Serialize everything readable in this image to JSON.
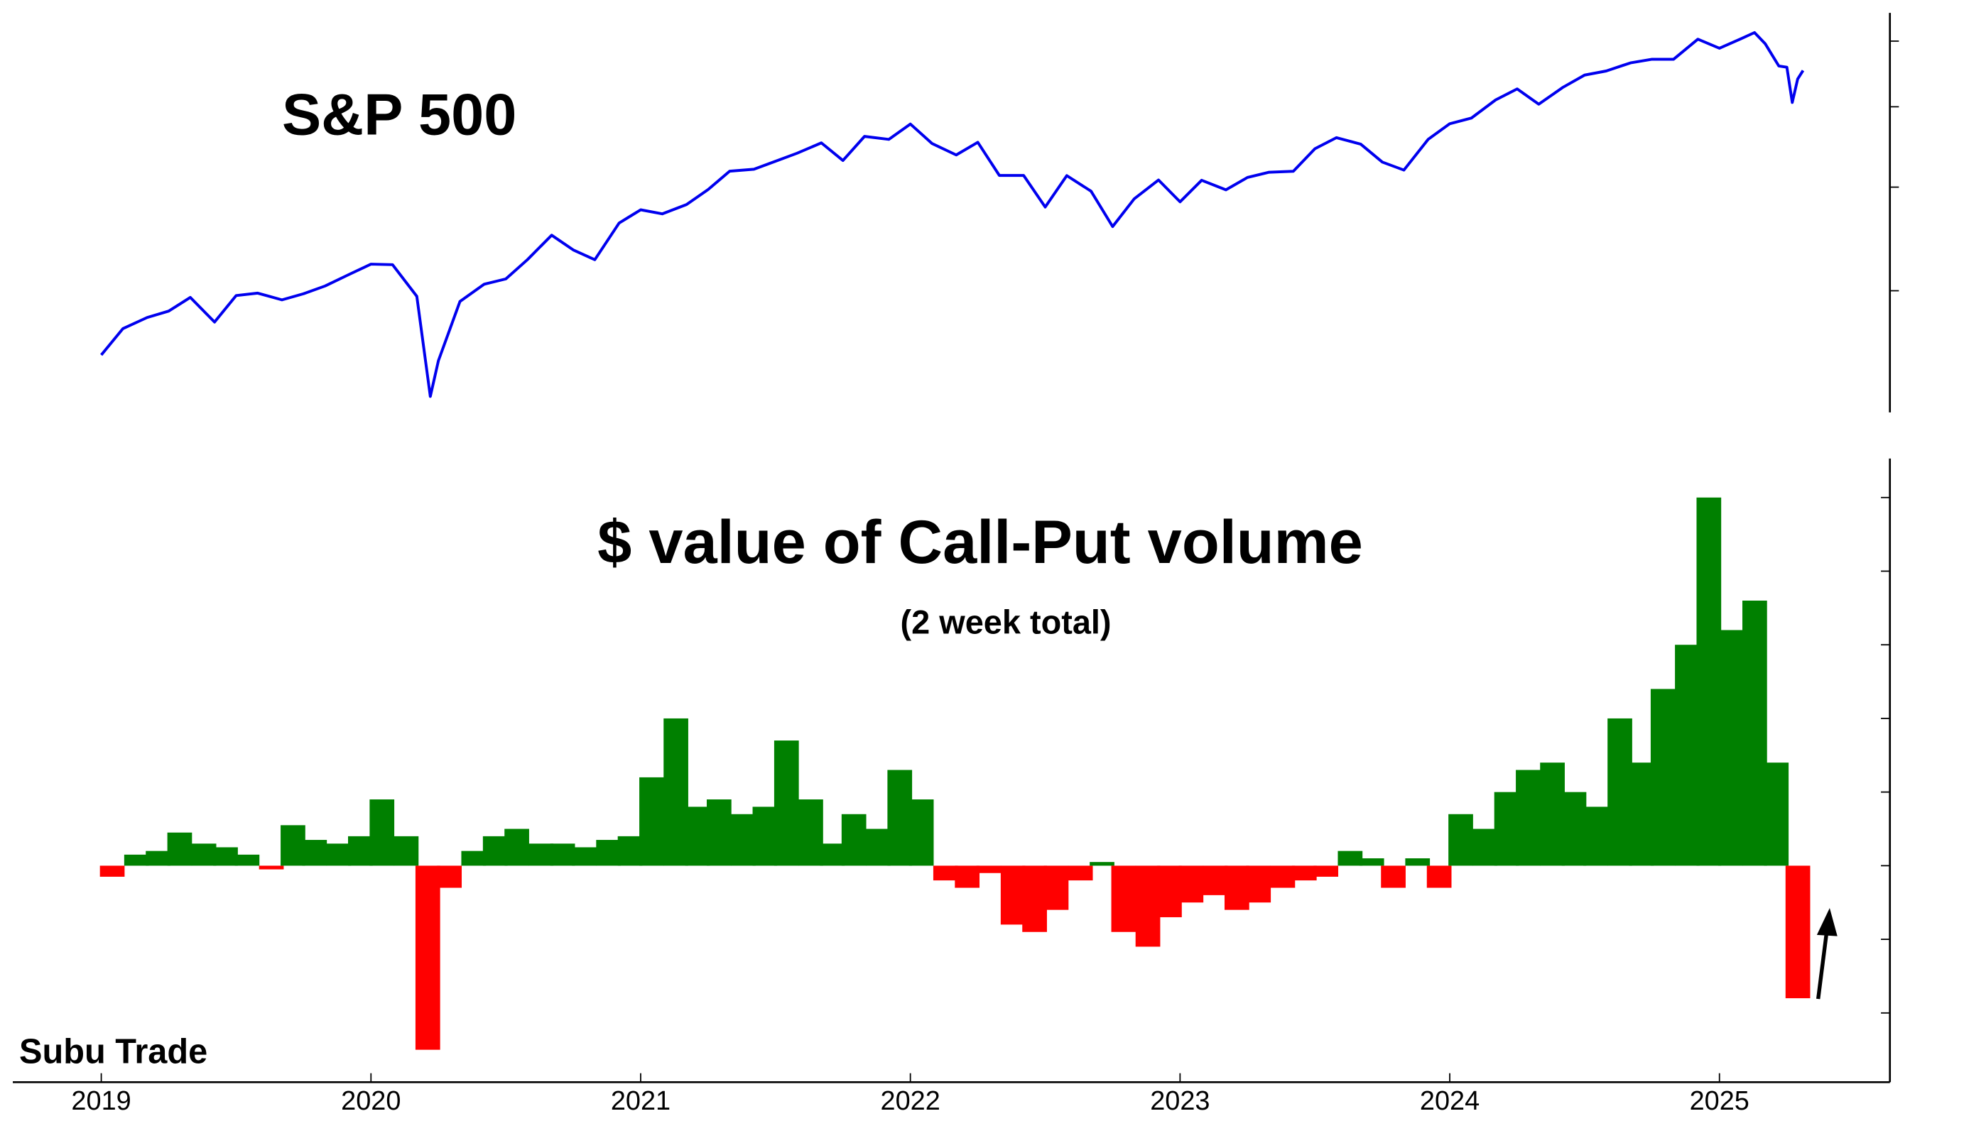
{
  "chart_data": [
    {
      "type": "line",
      "title": "S&P 500",
      "color": "#0000ee",
      "log_scale": true,
      "ylim": [
        2140,
        6490
      ],
      "yticks": [
        3000,
        4000,
        5000,
        6000
      ],
      "xlim": [
        2018.672,
        2025.632
      ],
      "x": [
        2019.0,
        2019.08,
        2019.17,
        2019.25,
        2019.33,
        2019.42,
        2019.5,
        2019.58,
        2019.67,
        2019.75,
        2019.83,
        2019.92,
        2020.0,
        2020.08,
        2020.17,
        2020.22,
        2020.25,
        2020.33,
        2020.42,
        2020.5,
        2020.58,
        2020.67,
        2020.75,
        2020.83,
        2020.92,
        2021.0,
        2021.08,
        2021.17,
        2021.25,
        2021.33,
        2021.42,
        2021.5,
        2021.58,
        2021.67,
        2021.75,
        2021.83,
        2021.92,
        2022.0,
        2022.08,
        2022.17,
        2022.25,
        2022.33,
        2022.42,
        2022.5,
        2022.58,
        2022.67,
        2022.75,
        2022.83,
        2022.92,
        2023.0,
        2023.08,
        2023.17,
        2023.25,
        2023.33,
        2023.42,
        2023.5,
        2023.58,
        2023.67,
        2023.75,
        2023.83,
        2023.92,
        2024.0,
        2024.08,
        2024.17,
        2024.25,
        2024.33,
        2024.42,
        2024.5,
        2024.58,
        2024.67,
        2024.75,
        2024.83,
        2024.92,
        2025.0,
        2025.08,
        2025.13,
        2025.17,
        2025.22,
        2025.25,
        2025.27,
        2025.29,
        2025.31
      ],
      "values": [
        2510,
        2700,
        2785,
        2835,
        2945,
        2750,
        2960,
        2980,
        2925,
        2975,
        3040,
        3140,
        3230,
        3225,
        2954,
        2237,
        2470,
        2912,
        3055,
        3100,
        3270,
        3500,
        3360,
        3270,
        3620,
        3756,
        3714,
        3811,
        3973,
        4181,
        4204,
        4298,
        4395,
        4523,
        4307,
        4605,
        4567,
        4766,
        4516,
        4374,
        4530,
        4132,
        4132,
        3785,
        4130,
        3955,
        3585,
        3872,
        4080,
        3840,
        4077,
        3970,
        4109,
        4169,
        4180,
        4450,
        4589,
        4507,
        4288,
        4194,
        4568,
        4770,
        4845,
        5096,
        5254,
        5036,
        5278,
        5460,
        5522,
        5648,
        5705,
        5705,
        6032,
        5882,
        6040,
        6144,
        5954,
        5600,
        5580,
        5060,
        5400,
        5530
      ]
    },
    {
      "type": "bar",
      "title": "$ value of Call-Put volume",
      "subtitle": "(2 week total)",
      "annotation": "Subu Trade",
      "positive_color": "#008000",
      "negative_color": "#ff0000",
      "ylim": [
        -29.4,
        55.3
      ],
      "yticks": [
        -20,
        -10,
        0,
        10,
        20,
        30,
        40,
        50
      ],
      "xlim": [
        2018.672,
        2025.632
      ],
      "xticks": [
        2019,
        2020,
        2021,
        2022,
        2023,
        2024,
        2025
      ],
      "x": [
        2019.04,
        2019.13,
        2019.21,
        2019.29,
        2019.38,
        2019.46,
        2019.54,
        2019.63,
        2019.71,
        2019.79,
        2019.88,
        2019.96,
        2020.04,
        2020.13,
        2020.21,
        2020.29,
        2020.38,
        2020.46,
        2020.54,
        2020.63,
        2020.71,
        2020.79,
        2020.88,
        2020.96,
        2021.04,
        2021.13,
        2021.21,
        2021.29,
        2021.38,
        2021.46,
        2021.54,
        2021.63,
        2021.71,
        2021.79,
        2021.88,
        2021.96,
        2022.04,
        2022.13,
        2022.21,
        2022.29,
        2022.38,
        2022.46,
        2022.54,
        2022.63,
        2022.71,
        2022.79,
        2022.88,
        2022.96,
        2023.04,
        2023.13,
        2023.21,
        2023.29,
        2023.38,
        2023.46,
        2023.54,
        2023.63,
        2023.71,
        2023.79,
        2023.88,
        2023.96,
        2024.04,
        2024.13,
        2024.21,
        2024.29,
        2024.38,
        2024.46,
        2024.54,
        2024.63,
        2024.71,
        2024.79,
        2024.88,
        2024.96,
        2025.04,
        2025.13,
        2025.21,
        2025.29
      ],
      "values": [
        -1.5,
        1.5,
        2,
        4.5,
        3,
        2.5,
        1.5,
        -0.5,
        5.5,
        3.5,
        3,
        4,
        9,
        4,
        -25,
        -3,
        2,
        4,
        5,
        3,
        3,
        2.5,
        3.5,
        4,
        12,
        20,
        8,
        9,
        7,
        8,
        17,
        9,
        3,
        7,
        5,
        13,
        9,
        -2,
        -3,
        -1,
        -8,
        -9,
        -6,
        -2,
        0.5,
        -9,
        -11,
        -7,
        -5,
        -4,
        -6,
        -5,
        -3,
        -2,
        -1.5,
        2,
        1,
        -3,
        1,
        -3,
        7,
        5,
        10,
        13,
        14,
        10,
        8,
        20,
        14,
        24,
        30,
        50,
        32,
        36,
        14,
        -18
      ]
    }
  ]
}
